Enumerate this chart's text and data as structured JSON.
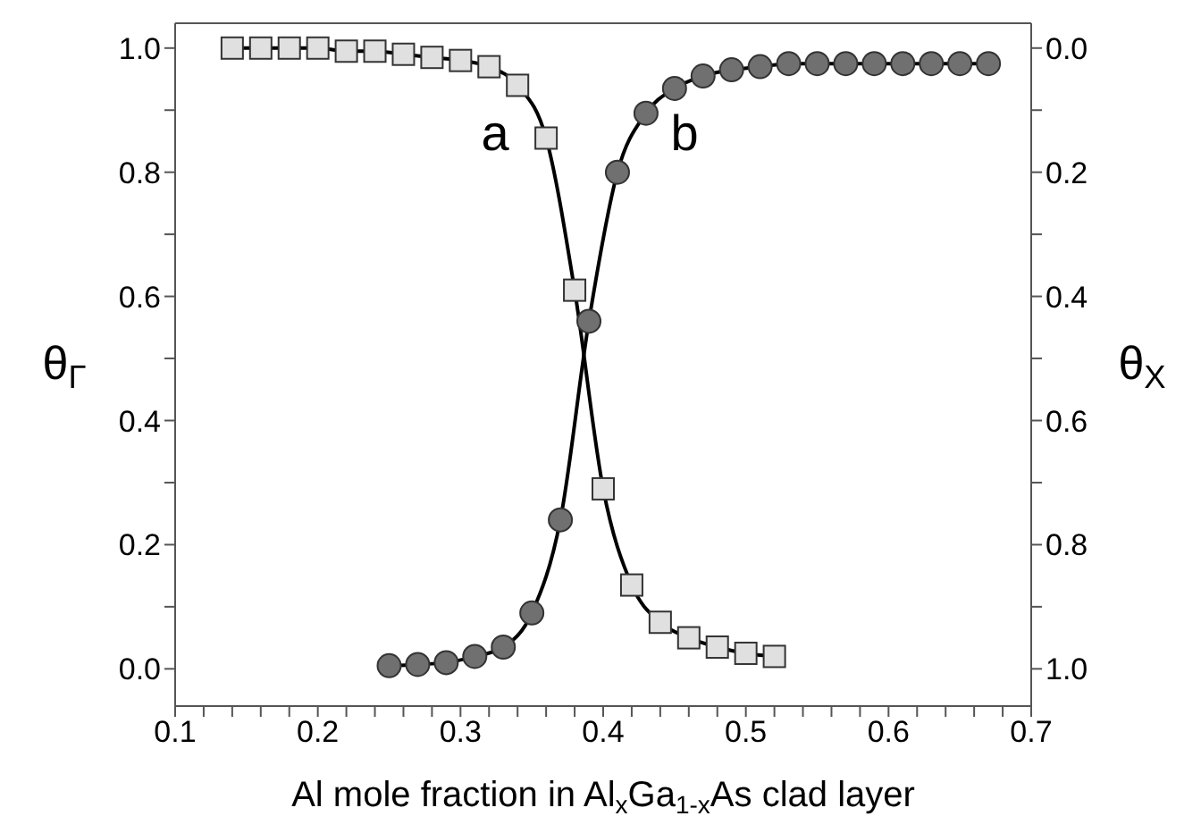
{
  "chart_data": {
    "type": "line",
    "xlabel": "Al mole fraction in Al$_{x}$Ga$_{1-x}$As clad layer",
    "ylabel": "θ$_{Γ}$",
    "y2label": "θ$_{X}$",
    "xlim": [
      0.1,
      0.7
    ],
    "xticks": [
      0.1,
      {
        "value": 0.12,
        "label": null
      },
      {
        "value": 0.14,
        "label": null
      },
      {
        "value": 0.16,
        "label": null
      },
      {
        "value": 0.18,
        "label": null
      },
      0.2,
      {
        "value": 0.22,
        "label": null
      },
      {
        "value": 0.24,
        "label": null
      },
      {
        "value": 0.26,
        "label": null
      },
      {
        "value": 0.28,
        "label": null
      },
      0.3,
      {
        "value": 0.32,
        "label": null
      },
      {
        "value": 0.34,
        "label": null
      },
      {
        "value": 0.36,
        "label": null
      },
      {
        "value": 0.38,
        "label": null
      },
      0.4,
      {
        "value": 0.42,
        "label": null
      },
      {
        "value": 0.44,
        "label": null
      },
      {
        "value": 0.46,
        "label": null
      },
      {
        "value": 0.48,
        "label": null
      },
      0.5,
      {
        "value": 0.52,
        "label": null
      },
      {
        "value": 0.54,
        "label": null
      },
      {
        "value": 0.56,
        "label": null
      },
      {
        "value": 0.58,
        "label": null
      },
      0.6,
      {
        "value": 0.62,
        "label": null
      },
      {
        "value": 0.64,
        "label": null
      },
      {
        "value": 0.66,
        "label": null
      },
      {
        "value": 0.68,
        "label": null
      },
      0.7
    ],
    "ylim": [
      -0.06,
      1.04
    ],
    "yticks": [
      {
        "value": 0.0,
        "label": "0.0"
      },
      {
        "value": 0.1,
        "label": null
      },
      {
        "value": 0.2,
        "label": "0.2"
      },
      {
        "value": 0.3,
        "label": null
      },
      {
        "value": 0.4,
        "label": "0.4"
      },
      {
        "value": 0.5,
        "label": null
      },
      {
        "value": 0.6,
        "label": "0.6"
      },
      {
        "value": 0.7,
        "label": null
      },
      {
        "value": 0.8,
        "label": "0.8"
      },
      {
        "value": 0.9,
        "label": null
      },
      {
        "value": 1.0,
        "label": "1.0"
      }
    ],
    "y2lim": [
      1.06,
      -0.04
    ],
    "y2ticks": [
      {
        "value": 0.0,
        "label": "0.0"
      },
      {
        "value": 0.1,
        "label": null
      },
      {
        "value": 0.2,
        "label": "0.2"
      },
      {
        "value": 0.3,
        "label": null
      },
      {
        "value": 0.4,
        "label": "0.4"
      },
      {
        "value": 0.5,
        "label": null
      },
      {
        "value": 0.6,
        "label": "0.6"
      },
      {
        "value": 0.7,
        "label": null
      },
      {
        "value": 0.8,
        "label": "0.8"
      },
      {
        "value": 0.9,
        "label": null
      },
      {
        "value": 1.0,
        "label": "1.0"
      }
    ],
    "grid": false,
    "legend": false,
    "series": [
      {
        "color": "#e0e0e0",
        "marker": "square",
        "x": [
          0.14,
          0.16,
          0.18,
          0.2,
          0.22,
          0.24,
          0.26,
          0.28,
          0.3,
          0.32,
          0.34,
          0.36,
          0.38,
          0.4,
          0.42,
          0.44,
          0.46,
          0.48,
          0.5,
          0.52
        ],
        "values": [
          1.0,
          1.0,
          1.0,
          1.0,
          0.995,
          0.995,
          0.99,
          0.985,
          0.98,
          0.97,
          0.94,
          0.855,
          0.61,
          0.29,
          0.135,
          0.075,
          0.05,
          0.035,
          0.025,
          0.02
        ]
      },
      {
        "color": "#707070",
        "marker": "circle",
        "axis": "y2",
        "x": [
          0.25,
          0.27,
          0.29,
          0.31,
          0.33,
          0.35,
          0.37,
          0.39,
          0.41,
          0.43,
          0.45,
          0.47,
          0.49,
          0.51,
          0.53,
          0.55,
          0.57,
          0.59,
          0.61,
          0.63,
          0.65,
          0.67
        ],
        "values": [
          0.995,
          0.993,
          0.99,
          0.98,
          0.965,
          0.91,
          0.76,
          0.44,
          0.2,
          0.105,
          0.065,
          0.045,
          0.035,
          0.03,
          0.025,
          0.025,
          0.025,
          0.025,
          0.025,
          0.025,
          0.025,
          0.025
        ]
      }
    ],
    "annotations": [
      "a",
      "b"
    ]
  }
}
